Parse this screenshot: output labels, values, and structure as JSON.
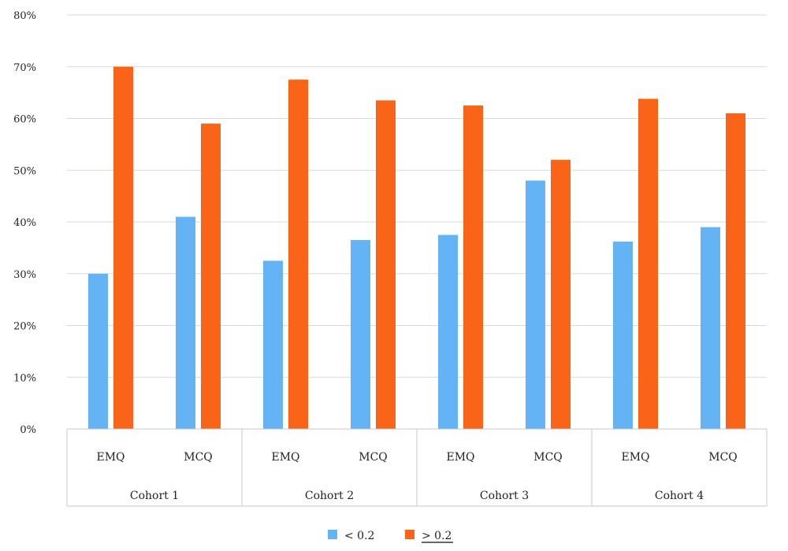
{
  "chart_data": {
    "type": "bar",
    "title": "",
    "xlabel": "",
    "ylabel": "",
    "ylim": [
      0,
      80
    ],
    "y_ticks": [
      0,
      10,
      20,
      30,
      40,
      50,
      60,
      70,
      80
    ],
    "y_tick_format": "%",
    "grid": true,
    "legend_position": "bottom",
    "groups": [
      {
        "label": "Cohort 1",
        "categories": [
          "EMQ",
          "MCQ"
        ]
      },
      {
        "label": "Cohort 2",
        "categories": [
          "EMQ",
          "MCQ"
        ]
      },
      {
        "label": "Cohort 3",
        "categories": [
          "EMQ",
          "MCQ"
        ]
      },
      {
        "label": "Cohort 4",
        "categories": [
          "EMQ",
          "MCQ"
        ]
      }
    ],
    "series": [
      {
        "name": "< 0.2",
        "color": "#63b3f5",
        "values": [
          30,
          41,
          32.5,
          36.5,
          37.5,
          48,
          36.2,
          39
        ]
      },
      {
        "name": "> 0.2",
        "color": "#f96419",
        "values": [
          70,
          59,
          67.5,
          63.5,
          62.5,
          52,
          63.8,
          61
        ]
      }
    ]
  }
}
